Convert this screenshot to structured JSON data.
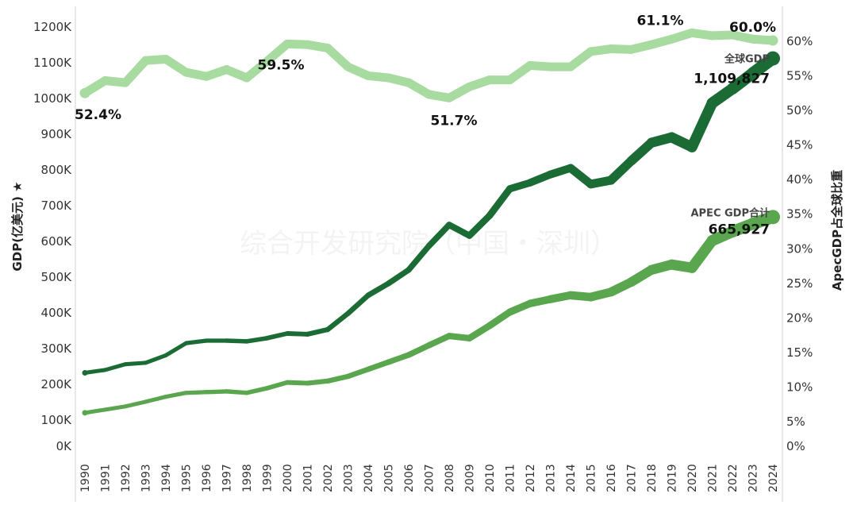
{
  "chart_data": {
    "type": "line",
    "title": "",
    "watermark": "综合开发研究院（中国・深圳）",
    "x": [
      1990,
      1991,
      1992,
      1993,
      1994,
      1995,
      1996,
      1997,
      1998,
      1999,
      2000,
      2001,
      2002,
      2003,
      2004,
      2005,
      2006,
      2007,
      2008,
      2009,
      2010,
      2011,
      2012,
      2013,
      2014,
      2015,
      2016,
      2017,
      2018,
      2019,
      2020,
      2021,
      2022,
      2023,
      2024
    ],
    "x_tick_labels": [
      "1990",
      "1991",
      "1992",
      "1993",
      "1994",
      "1995",
      "1996",
      "1997",
      "1998",
      "1999",
      "2000",
      "2001",
      "2002",
      "2003",
      "2004",
      "2005",
      "2006",
      "2007",
      "2008",
      "2009",
      "2010",
      "2011",
      "2012",
      "2013",
      "2014",
      "2015",
      "2016",
      "2017",
      "2018",
      "2019",
      "2020",
      "2021",
      "2022",
      "2023",
      "2024"
    ],
    "ylabel_left": "GDP(亿美元) ★",
    "ylabel_right": "ApecGDP占全球比重",
    "ylim_left": [
      0,
      1200000
    ],
    "ylim_right": [
      0,
      60
    ],
    "y_ticks_left": [
      "0K",
      "100K",
      "200K",
      "300K",
      "400K",
      "500K",
      "600K",
      "700K",
      "800K",
      "900K",
      "1000K",
      "1100K",
      "1200K"
    ],
    "y_ticks_right": [
      "0%",
      "5%",
      "10%",
      "15%",
      "20%",
      "25%",
      "30%",
      "35%",
      "40%",
      "45%",
      "50%",
      "55%",
      "60%"
    ],
    "grid": false,
    "series": [
      {
        "name": "全球GDP",
        "axis": "left",
        "color": "#1a6b34",
        "values": [
          230000,
          238000,
          254000,
          258000,
          279000,
          313000,
          320000,
          320000,
          318000,
          327000,
          340000,
          338000,
          351000,
          396000,
          447000,
          480000,
          518000,
          585000,
          644000,
          614000,
          670000,
          745000,
          762000,
          785000,
          803000,
          758000,
          769000,
          823000,
          874000,
          889000,
          862000,
          985000,
          1025000,
          1068000,
          1109827
        ]
      },
      {
        "name": "APEC GDP合计",
        "axis": "left",
        "color": "#5aa64f",
        "values": [
          118000,
          127000,
          136000,
          149000,
          163000,
          174000,
          176000,
          178000,
          174000,
          187000,
          203000,
          201000,
          207000,
          220000,
          240000,
          260000,
          280000,
          307000,
          333000,
          327000,
          362000,
          400000,
          424000,
          436000,
          447000,
          442000,
          456000,
          484000,
          518000,
          533000,
          524000,
          600000,
          625000,
          647000,
          665927
        ]
      },
      {
        "name": "ApecGDP占全球比重",
        "axis": "right",
        "color": "#a8dba0",
        "values": [
          52.4,
          54.2,
          53.9,
          57.1,
          57.3,
          55.4,
          54.8,
          55.8,
          54.6,
          57.0,
          59.5,
          59.4,
          58.9,
          56.2,
          54.9,
          54.6,
          53.9,
          52.2,
          51.7,
          53.3,
          54.3,
          54.3,
          56.4,
          56.2,
          56.2,
          58.4,
          58.8,
          58.7,
          59.4,
          60.2,
          61.1,
          60.7,
          60.8,
          60.2,
          60.0
        ]
      }
    ],
    "annotations": [
      {
        "series": 2,
        "year": 1990,
        "text": "52.4%"
      },
      {
        "series": 2,
        "year": 2000,
        "text": "59.5%"
      },
      {
        "series": 2,
        "year": 2008,
        "text": "51.7%"
      },
      {
        "series": 2,
        "year": 2020,
        "text": "61.1%"
      },
      {
        "series": 2,
        "year": 2024,
        "text": "60.0%"
      },
      {
        "series": 0,
        "year": 2024,
        "label": "全球GDP",
        "text": "1,109,827"
      },
      {
        "series": 1,
        "year": 2024,
        "label": "APEC GDP合计",
        "text": "665,927"
      }
    ]
  }
}
